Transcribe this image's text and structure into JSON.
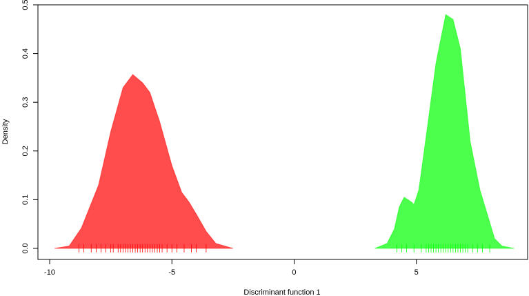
{
  "chart_data": {
    "type": "density",
    "xlabel": "Discriminant function 1",
    "ylabel": "Density",
    "xlim": [
      -10.48,
      9.55
    ],
    "ylim": [
      -0.0227,
      0.5
    ],
    "xticks": [
      -10,
      -5,
      0,
      5
    ],
    "yticks": [
      {
        "value": 0,
        "label": "0.0"
      },
      0.1,
      0.2,
      0.3,
      0.4,
      0.5
    ],
    "series": [
      {
        "color": "#ff0000",
        "x": [
          -9.8,
          -9.2,
          -8.7,
          -8.0,
          -7.5,
          -7.0,
          -6.6,
          -6.2,
          -5.9,
          -5.5,
          -5.0,
          -4.6,
          -4.3,
          -4.0,
          -3.6,
          -3.2,
          -2.5
        ],
        "values": [
          0,
          0.005,
          0.042,
          0.13,
          0.24,
          0.33,
          0.357,
          0.34,
          0.32,
          0.26,
          0.17,
          0.115,
          0.095,
          0.07,
          0.035,
          0.01,
          0
        ],
        "rug": [
          -8.8,
          -8.6,
          -8.3,
          -8.1,
          -7.9,
          -7.7,
          -7.5,
          -7.4,
          -7.2,
          -7.1,
          -7.0,
          -6.9,
          -6.8,
          -6.7,
          -6.6,
          -6.5,
          -6.4,
          -6.3,
          -6.2,
          -6.1,
          -6.0,
          -5.9,
          -5.8,
          -5.7,
          -5.6,
          -5.5,
          -5.4,
          -5.2,
          -5.0,
          -4.8,
          -4.5,
          -4.2,
          -4.0,
          -3.6
        ]
      },
      {
        "color": "#00ff00",
        "x": [
          3.3,
          3.8,
          4.1,
          4.3,
          4.5,
          4.8,
          4.9,
          5.1,
          5.4,
          5.8,
          6.2,
          6.5,
          6.8,
          7.2,
          7.6,
          7.9,
          8.2,
          8.5,
          9.0
        ],
        "values": [
          0,
          0.01,
          0.04,
          0.085,
          0.105,
          0.095,
          0.09,
          0.12,
          0.23,
          0.38,
          0.48,
          0.47,
          0.41,
          0.22,
          0.12,
          0.07,
          0.02,
          0.005,
          0
        ],
        "rug": [
          4.2,
          4.4,
          4.6,
          4.9,
          5.2,
          5.4,
          5.5,
          5.6,
          5.7,
          5.8,
          5.9,
          6.0,
          6.1,
          6.2,
          6.3,
          6.4,
          6.5,
          6.6,
          6.7,
          6.8,
          6.9,
          7.0,
          7.1,
          7.3,
          7.5,
          7.7,
          8.0
        ]
      }
    ]
  }
}
